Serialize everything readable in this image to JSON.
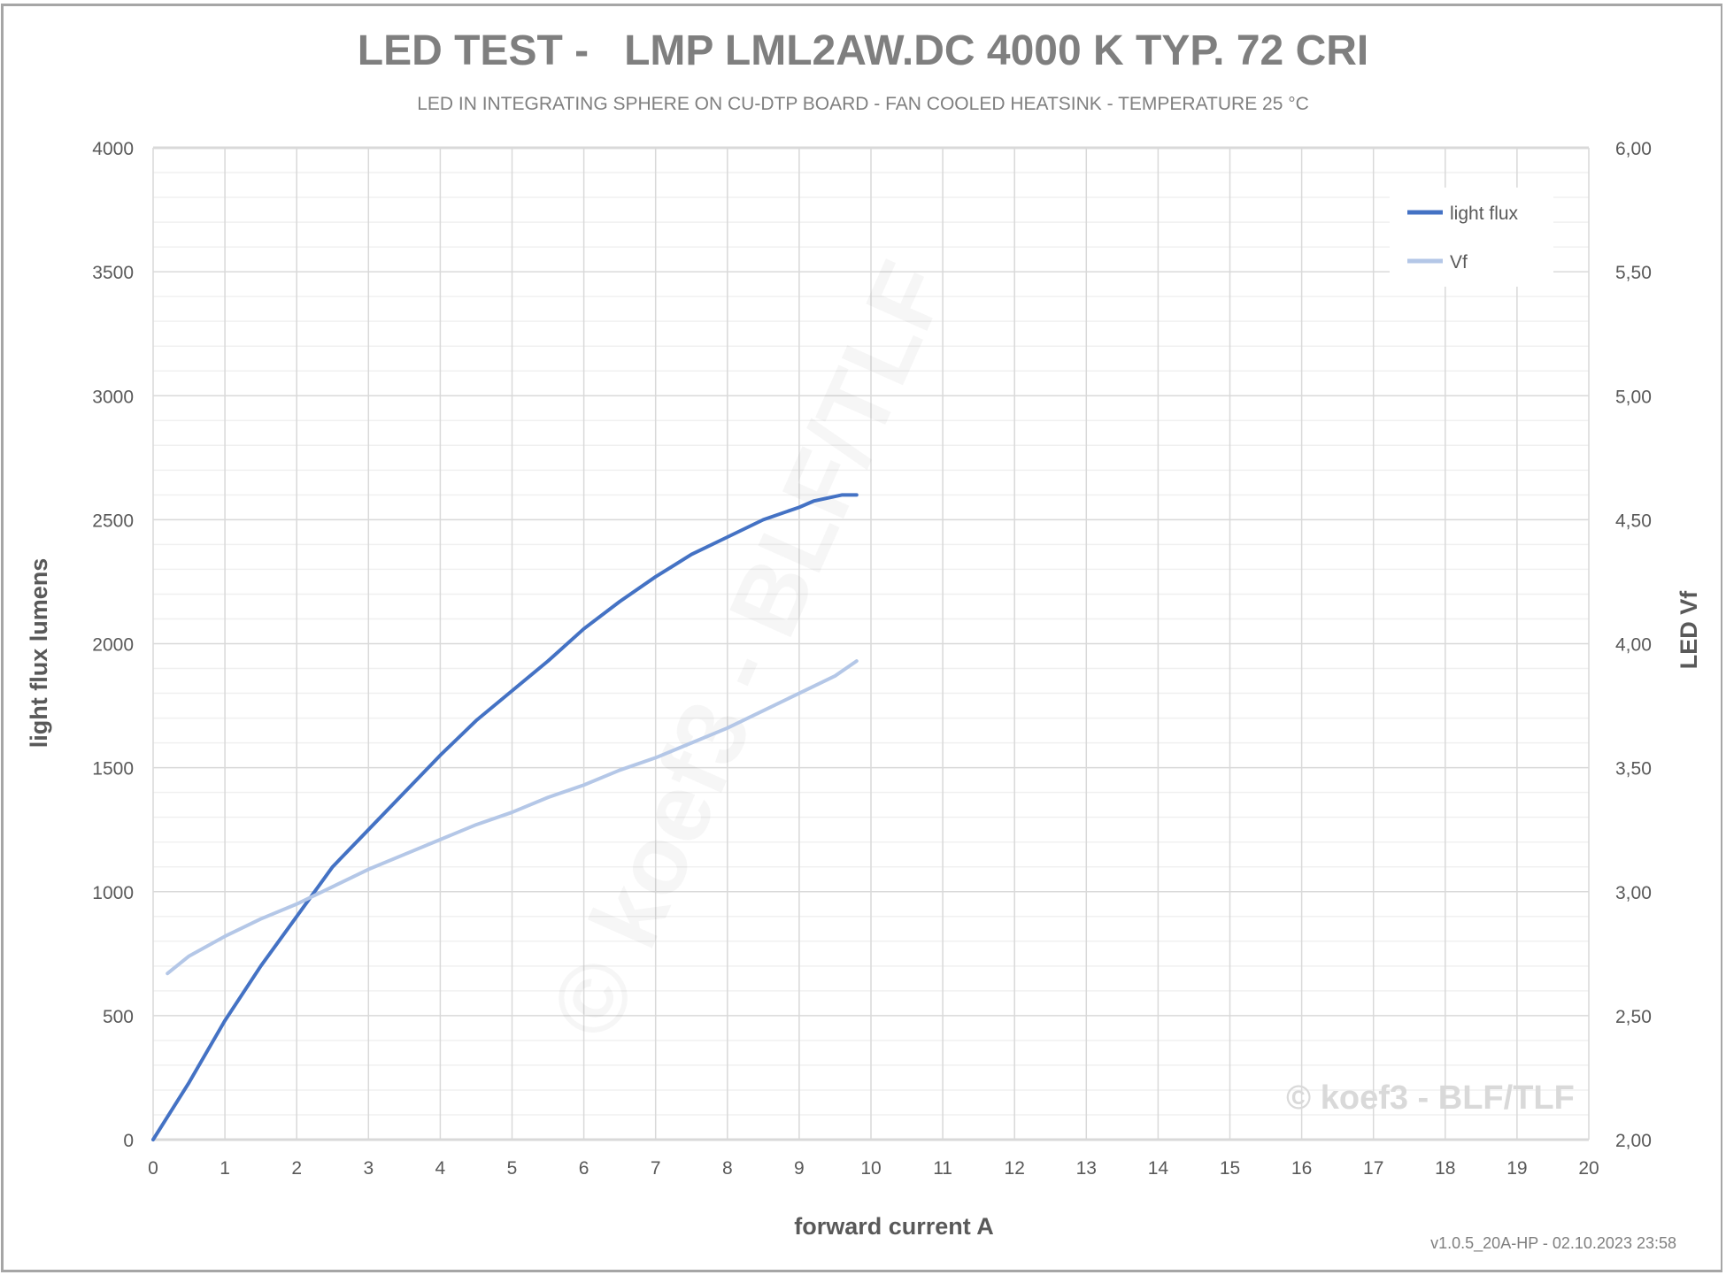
{
  "chart_data": {
    "type": "line",
    "title": "LED TEST -   LMP LML2AW.DC 4000 K TYP. 72 CRI",
    "subtitle": "LED IN INTEGRATING SPHERE ON CU-DTP BOARD - FAN COOLED HEATSINK - TEMPERATURE 25 °C",
    "xlabel": "forward current A",
    "ylabel": "light flux lumens",
    "y2label": "LED Vf",
    "xlim": [
      0,
      20
    ],
    "ylim": [
      0,
      4000
    ],
    "y2lim": [
      2.0,
      6.0
    ],
    "x_ticks": [
      "0",
      "1",
      "2",
      "3",
      "4",
      "5",
      "6",
      "7",
      "8",
      "9",
      "10",
      "11",
      "12",
      "13",
      "14",
      "15",
      "16",
      "17",
      "18",
      "19",
      "20"
    ],
    "y_ticks": [
      "0",
      "500",
      "1000",
      "1500",
      "2000",
      "2500",
      "3000",
      "3500",
      "4000"
    ],
    "y2_ticks": [
      "2,00",
      "2,50",
      "3,00",
      "3,50",
      "4,00",
      "4,50",
      "5,00",
      "5,50",
      "6,00"
    ],
    "grid": true,
    "legend_position": "top-right",
    "series": [
      {
        "name": "light flux",
        "axis": "left",
        "color": "#4472c4",
        "x": [
          0,
          0.5,
          1,
          1.5,
          2,
          2.5,
          3,
          3.5,
          4,
          4.5,
          5,
          5.5,
          6,
          6.5,
          7,
          7.5,
          8,
          8.5,
          9,
          9.2,
          9.6,
          9.8
        ],
        "y": [
          0,
          230,
          480,
          700,
          900,
          1100,
          1250,
          1400,
          1550,
          1690,
          1810,
          1930,
          2060,
          2170,
          2270,
          2360,
          2430,
          2500,
          2550,
          2575,
          2600,
          2600
        ]
      },
      {
        "name": "Vf",
        "axis": "right",
        "color": "#b4c7e7",
        "x": [
          0.2,
          0.5,
          1,
          1.5,
          2,
          2.5,
          3,
          3.5,
          4,
          4.5,
          5,
          5.5,
          6,
          6.5,
          7,
          7.5,
          8,
          8.5,
          9,
          9.5,
          9.8
        ],
        "y": [
          2.67,
          2.74,
          2.82,
          2.89,
          2.95,
          3.02,
          3.09,
          3.15,
          3.21,
          3.27,
          3.32,
          3.38,
          3.43,
          3.49,
          3.54,
          3.6,
          3.66,
          3.73,
          3.8,
          3.87,
          3.93
        ]
      }
    ]
  },
  "watermark": "© koef3 - BLF/TLF",
  "footer": "v1.0.5_20A-HP  -  02.10.2023 23:58"
}
